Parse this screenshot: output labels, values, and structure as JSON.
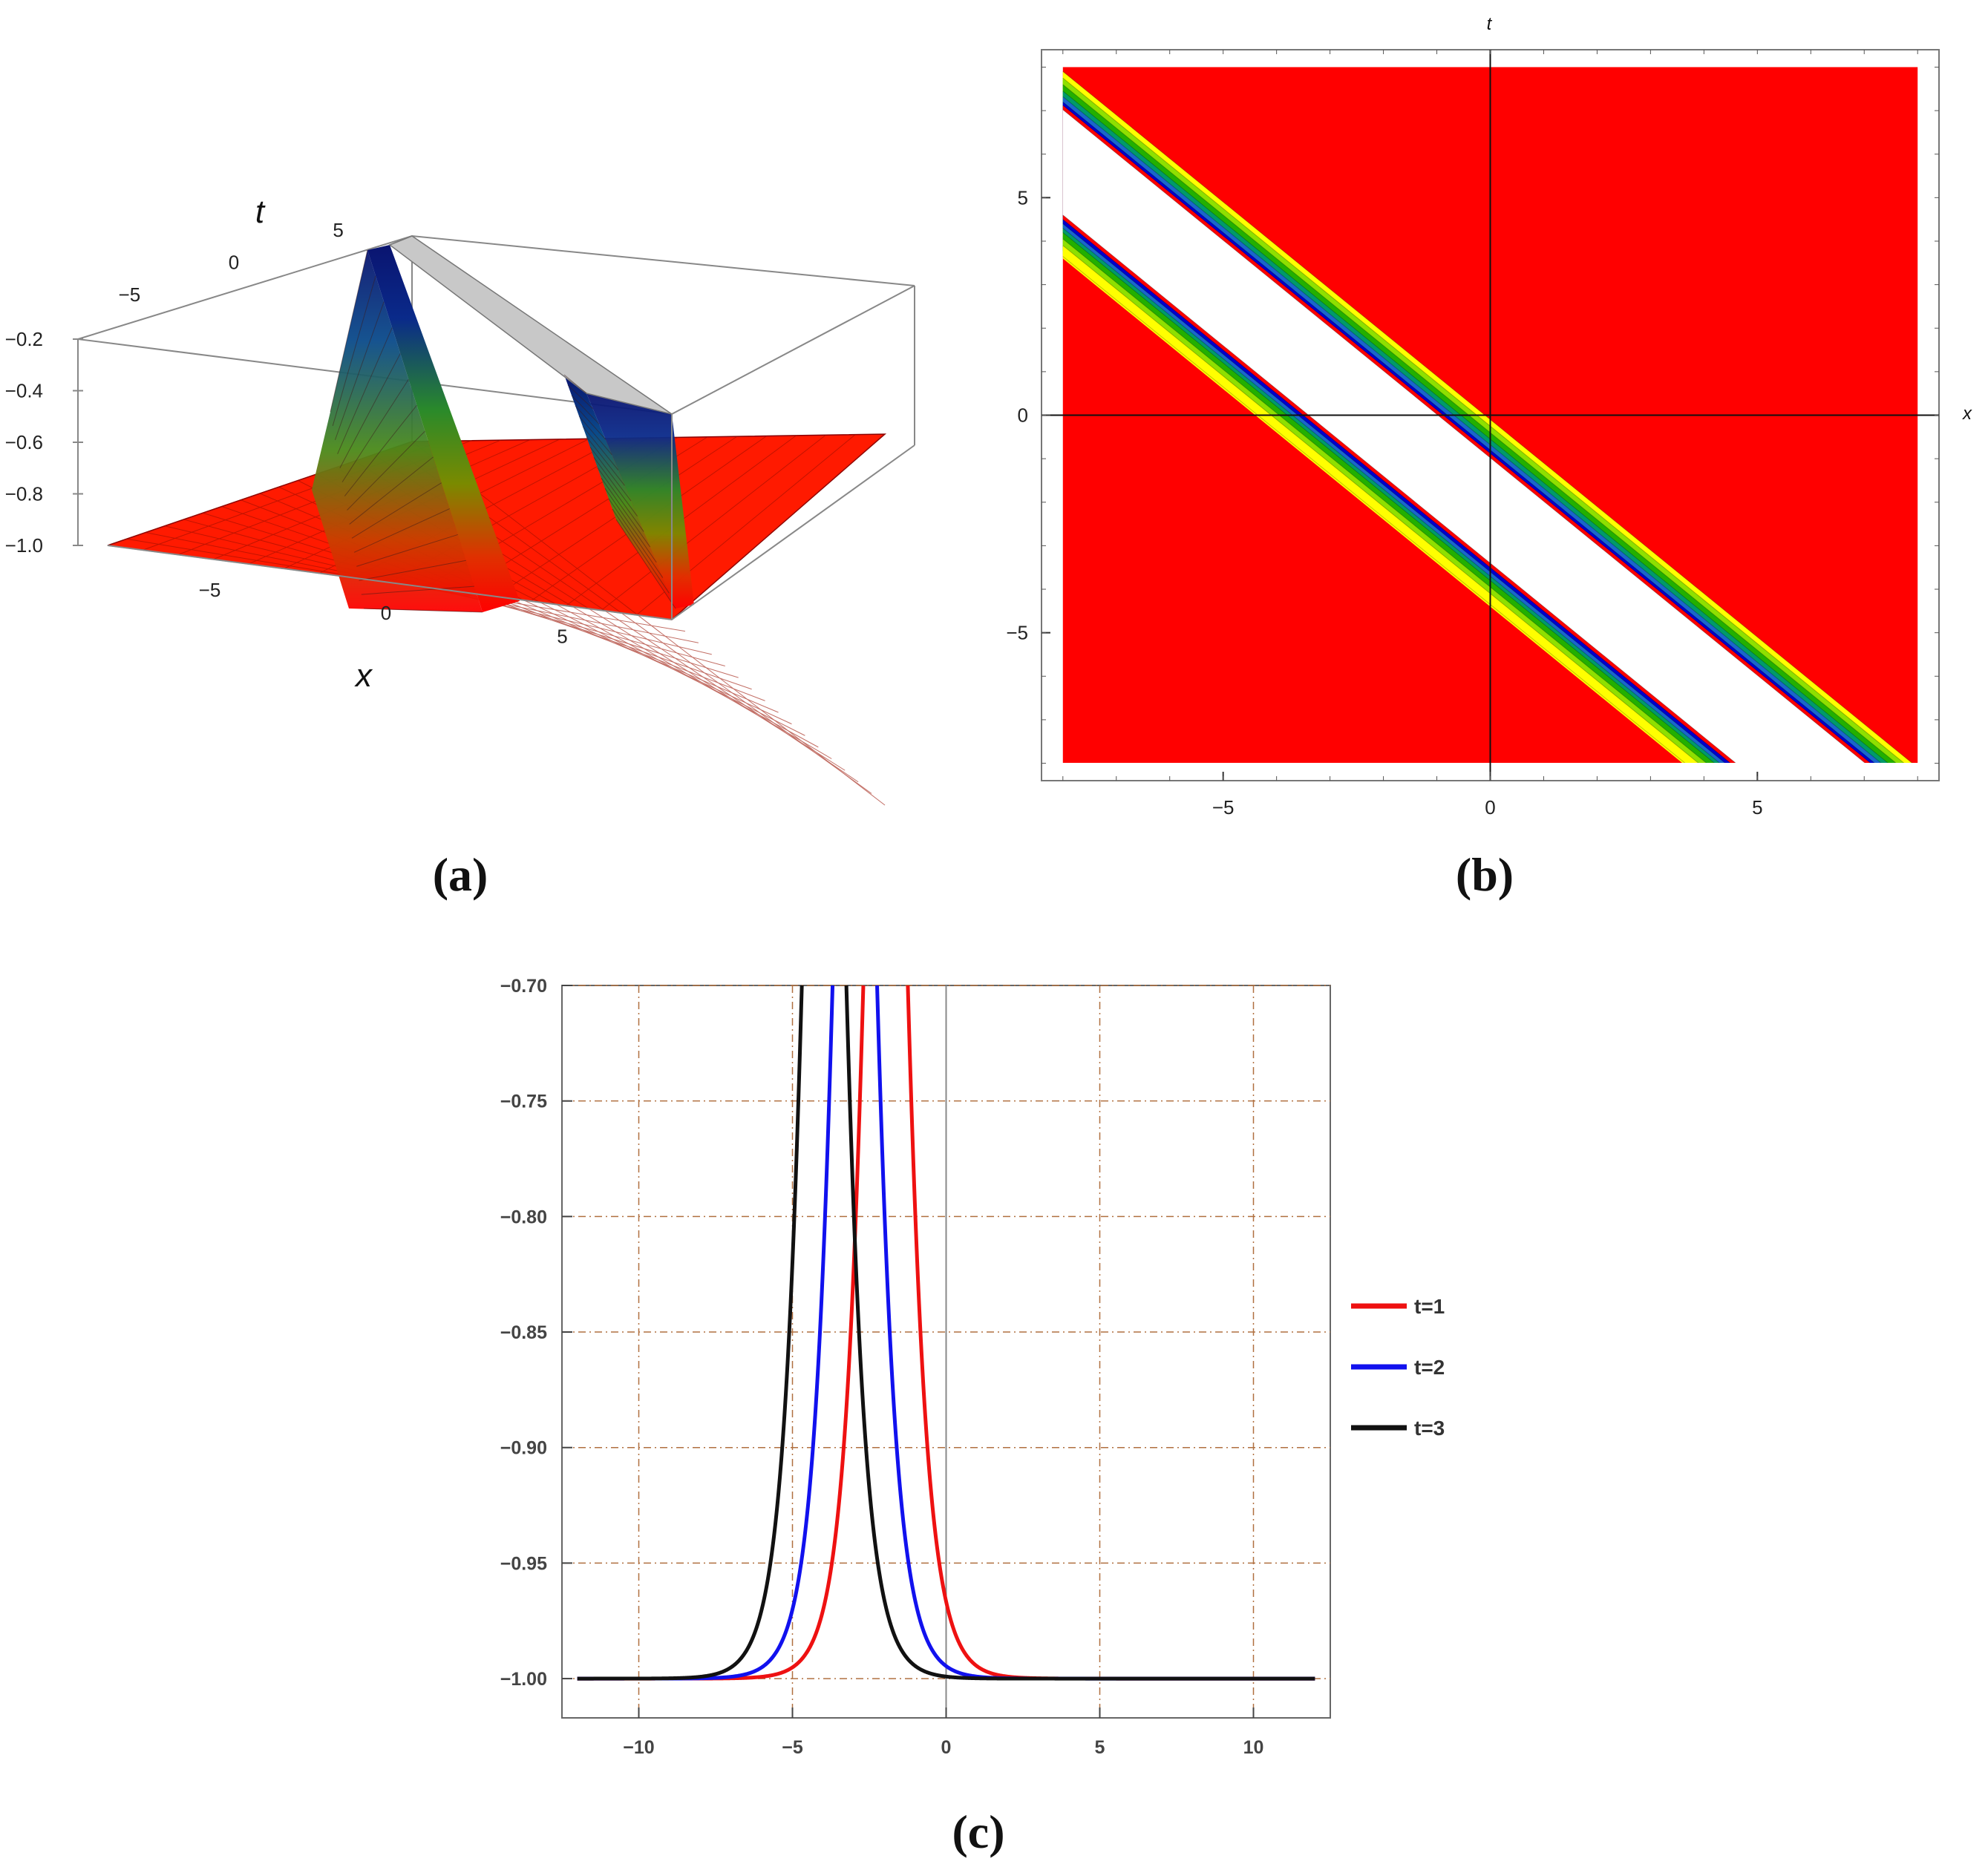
{
  "panels": {
    "a": "(a)",
    "b": "(b)",
    "c": "(c)"
  },
  "chart_data": [
    {
      "panel": "a",
      "type": "surface3d",
      "xlabel": "x",
      "ylabel": "t",
      "x_ticks": [
        "−5",
        "0",
        "5"
      ],
      "t_ticks": [
        "−5",
        "0",
        "5"
      ],
      "z_ticks": [
        "−0.2",
        "−0.4",
        "−0.6",
        "−0.8",
        "−1.0"
      ],
      "xlim": [
        -8,
        8
      ],
      "tlim": [
        -8,
        8
      ],
      "zlim": [
        -1.0,
        -0.2
      ],
      "colors": {
        "base": "#ff0000",
        "mid": "#3a9a1a",
        "high": "#0a1a8a",
        "cap": "#c8c8c8"
      }
    },
    {
      "panel": "b",
      "type": "heatmap",
      "xlabel": "x",
      "ylabel": "t",
      "x_ticks": [
        -5,
        0,
        5
      ],
      "y_ticks": [
        -5,
        0,
        5
      ],
      "x_tick_labels": [
        "−5",
        "0",
        "5"
      ],
      "y_tick_labels": [
        "−5",
        "0",
        "5"
      ],
      "xlim": [
        -8.4,
        8.4
      ],
      "ylim": [
        -8.4,
        8.4
      ],
      "data_extent": [
        -8,
        8
      ],
      "band_centers": [
        -3.8,
        -1.1
      ],
      "band_slope": -1,
      "colors": [
        "#ff0000",
        "#ffff00",
        "#8ee000",
        "#22b000",
        "#009a6a",
        "#1a66cc",
        "#0000cc",
        "#ffffff"
      ]
    },
    {
      "panel": "c",
      "type": "line",
      "x_ticks": [
        -10,
        -5,
        0,
        5,
        10
      ],
      "x_tick_labels": [
        "−10",
        "−5",
        "0",
        "5",
        "10"
      ],
      "y_ticks": [
        -1.0,
        -0.95,
        -0.9,
        -0.85,
        -0.8,
        -0.75,
        -0.7
      ],
      "y_tick_labels": [
        "−1.00",
        "−0.95",
        "−0.90",
        "−0.85",
        "−0.80",
        "−0.75",
        "−0.70"
      ],
      "xlim": [
        -12.5,
        12.5
      ],
      "ylim": [
        -1.017,
        -0.7
      ],
      "x_range": [
        -12,
        12
      ],
      "grid": true,
      "legend": "right",
      "series": [
        {
          "name": "t=1",
          "color": "#ee1111",
          "center": -1.97,
          "width": 0.55
        },
        {
          "name": "t=2",
          "color": "#1111ee",
          "center": -2.97,
          "width": 0.55
        },
        {
          "name": "t=3",
          "color": "#111111",
          "center": -3.97,
          "width": 0.55
        }
      ]
    }
  ]
}
